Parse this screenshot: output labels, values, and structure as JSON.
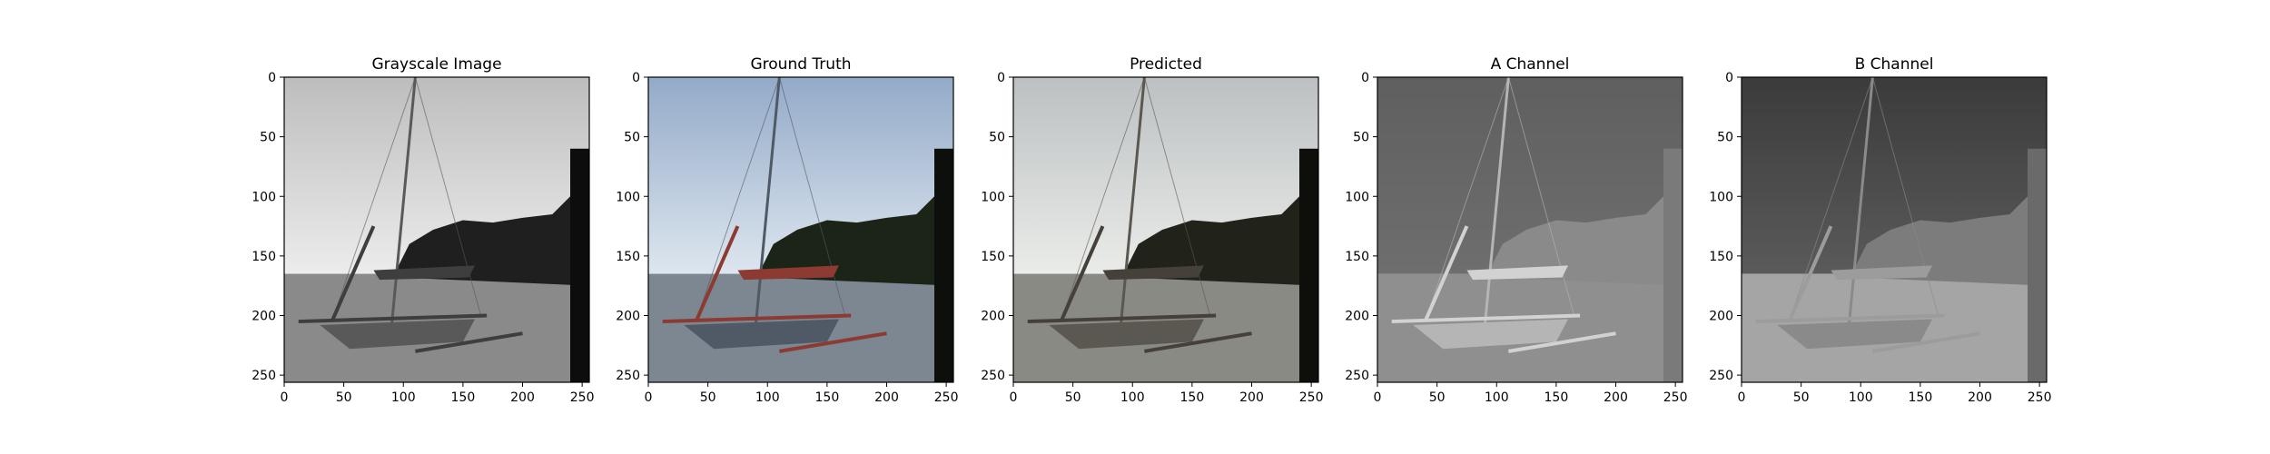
{
  "figure": {
    "background": "#ffffff",
    "axes_color": "#000000"
  },
  "chart_data": [
    {
      "type": "image",
      "title": "Grayscale Image",
      "xlim": [
        0,
        256
      ],
      "ylim": [
        256,
        0
      ],
      "xticks": [
        0,
        50,
        100,
        150,
        200,
        250
      ],
      "yticks": [
        0,
        50,
        100,
        150,
        200,
        250
      ],
      "palette": {
        "sky_top": "#bdbdbd",
        "sky_bottom": "#ececec",
        "trees": "#1f1f1f",
        "water": "#8a8a8a",
        "hull": "#595959",
        "sail": "#3e3e3e",
        "shore": "#0d0d0d"
      }
    },
    {
      "type": "image",
      "title": "Ground Truth",
      "xlim": [
        0,
        256
      ],
      "ylim": [
        256,
        0
      ],
      "xticks": [
        0,
        50,
        100,
        150,
        200,
        250
      ],
      "yticks": [
        0,
        50,
        100,
        150,
        200,
        250
      ],
      "palette": {
        "sky_top": "#93aac8",
        "sky_bottom": "#dde6ef",
        "trees": "#1c2418",
        "water": "#7c8791",
        "hull": "#4f5a66",
        "sail": "#8c3a32",
        "shore": "#0c0f0b"
      }
    },
    {
      "type": "image",
      "title": "Predicted",
      "xlim": [
        0,
        256
      ],
      "ylim": [
        256,
        0
      ],
      "xticks": [
        0,
        50,
        100,
        150,
        200,
        250
      ],
      "yticks": [
        0,
        50,
        100,
        150,
        200,
        250
      ],
      "palette": {
        "sky_top": "#bcc0c2",
        "sky_bottom": "#eaece9",
        "trees": "#212219",
        "water": "#898a83",
        "hull": "#5a5850",
        "sail": "#45413a",
        "shore": "#0e0e0b"
      }
    },
    {
      "type": "image",
      "title": "A Channel",
      "xlim": [
        0,
        256
      ],
      "ylim": [
        256,
        0
      ],
      "xticks": [
        0,
        50,
        100,
        150,
        200,
        250
      ],
      "yticks": [
        0,
        50,
        100,
        150,
        200,
        250
      ],
      "palette": {
        "sky_top": "#5f5f5f",
        "sky_bottom": "#6e6e6e",
        "trees": "#8a8a8a",
        "water": "#8f8f8f",
        "hull": "#b5b5b5",
        "sail": "#d2d2d2",
        "shore": "#7a7a7a"
      }
    },
    {
      "type": "image",
      "title": "B Channel",
      "xlim": [
        0,
        256
      ],
      "ylim": [
        256,
        0
      ],
      "xticks": [
        0,
        50,
        100,
        150,
        200,
        250
      ],
      "yticks": [
        0,
        50,
        100,
        150,
        200,
        250
      ],
      "palette": {
        "sky_top": "#3b3b3b",
        "sky_bottom": "#5a5a5a",
        "trees": "#7c7c7c",
        "water": "#a5a5a5",
        "hull": "#8a8a8a",
        "sail": "#9c9c9c",
        "shore": "#6a6a6a"
      }
    }
  ]
}
